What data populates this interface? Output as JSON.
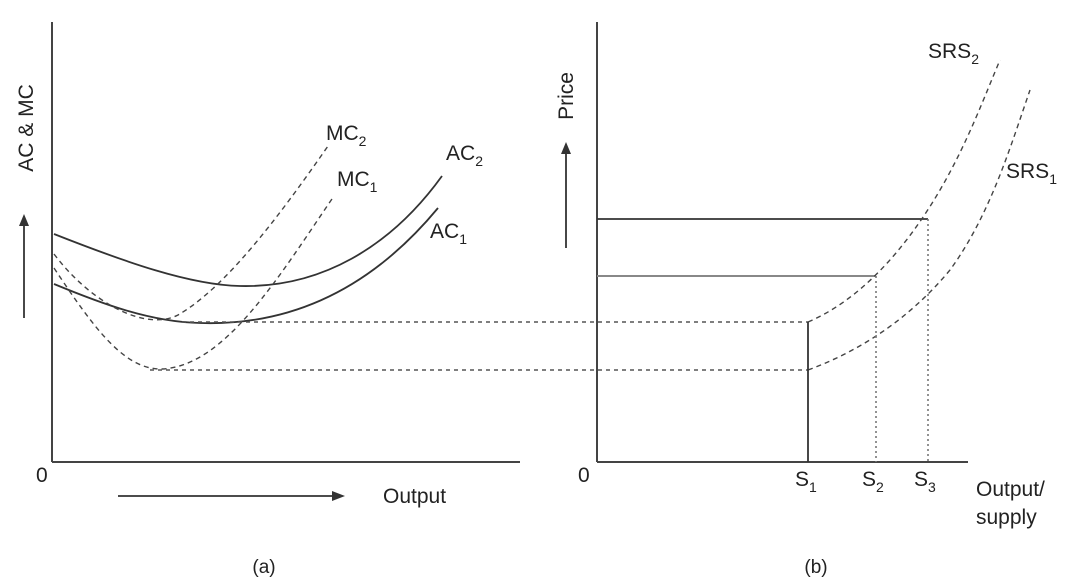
{
  "panel_a": {
    "y_axis_label": "AC & MC",
    "x_axis_label": "Output",
    "origin": "0",
    "caption": "(a)",
    "curves": {
      "mc2": {
        "main": "MC",
        "sub": "2"
      },
      "mc1": {
        "main": "MC",
        "sub": "1"
      },
      "ac2": {
        "main": "AC",
        "sub": "2"
      },
      "ac1": {
        "main": "AC",
        "sub": "1"
      }
    }
  },
  "panel_b": {
    "y_axis_label": "Price",
    "x_axis_label_line1": "Output/",
    "x_axis_label_line2": "supply",
    "origin": "0",
    "caption": "(b)",
    "curves": {
      "srs2": {
        "main": "SRS",
        "sub": "2"
      },
      "srs1": {
        "main": "SRS",
        "sub": "1"
      }
    },
    "ticks": [
      {
        "main": "S",
        "sub": "1"
      },
      {
        "main": "S",
        "sub": "2"
      },
      {
        "main": "S",
        "sub": "3"
      }
    ]
  }
}
